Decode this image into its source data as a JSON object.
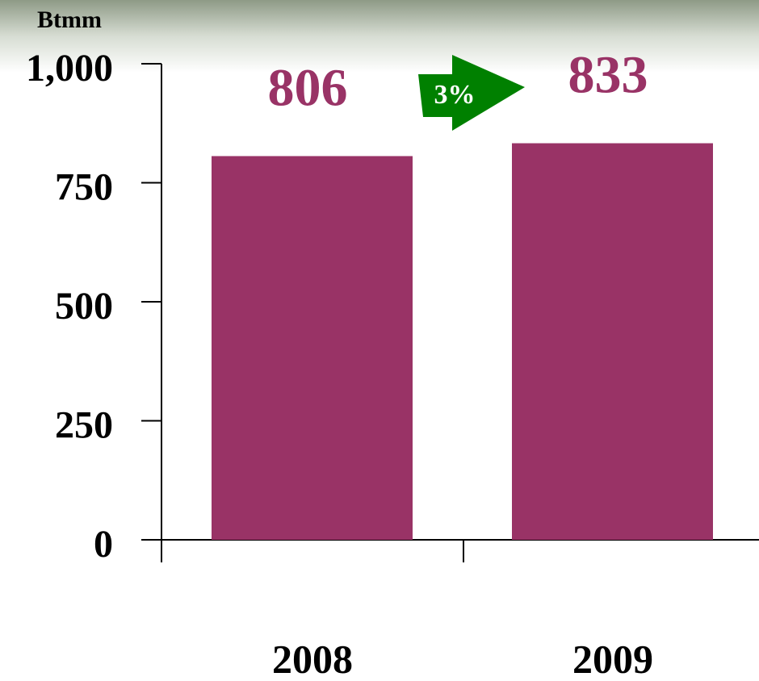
{
  "chart_data": {
    "type": "bar",
    "y_axis_label": "Btmm",
    "annotation": "3%",
    "categories": [
      "2008",
      "2009"
    ],
    "values": [
      806,
      833
    ],
    "color": "#993366",
    "ylim": [
      0,
      1000
    ],
    "yticks": [
      0,
      250,
      500,
      750,
      {
        "value": 1000,
        "label": "1,000"
      }
    ]
  }
}
